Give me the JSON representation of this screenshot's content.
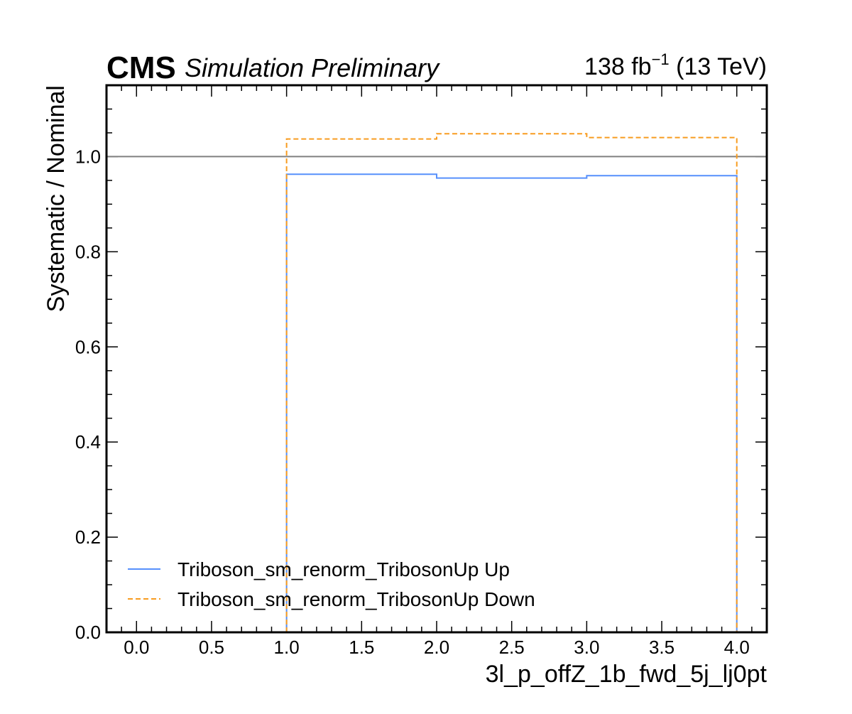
{
  "header": {
    "experiment": "CMS",
    "status": "Simulation Preliminary",
    "lumi_value": "138 fb",
    "lumi_exp": "−1",
    "lumi_energy": " (13 TeV)"
  },
  "chart_data": {
    "type": "line",
    "drawstyle": "steps",
    "xlabel": "3l_p_offZ_1b_fwd_5j_lj0pt",
    "ylabel": "Systematic / Nominal",
    "xlim": [
      -0.2,
      4.2
    ],
    "ylim": [
      0.0,
      1.15
    ],
    "xticks": [
      0.0,
      0.5,
      1.0,
      1.5,
      2.0,
      2.5,
      3.0,
      3.5,
      4.0
    ],
    "xtick_labels": [
      "0.0",
      "0.5",
      "1.0",
      "1.5",
      "2.0",
      "2.5",
      "3.0",
      "3.5",
      "4.0"
    ],
    "yticks": [
      0.0,
      0.2,
      0.4,
      0.6,
      0.8,
      1.0
    ],
    "ytick_labels": [
      "0.0",
      "0.2",
      "0.4",
      "0.6",
      "0.8",
      "1.0"
    ],
    "reference_line": {
      "y": 1.0,
      "color": "#808080"
    },
    "bin_edges": [
      1.0,
      2.0,
      3.0,
      4.0
    ],
    "series": [
      {
        "name": "Triboson_sm_renorm_TribosonUp Up",
        "values": [
          0.963,
          0.955,
          0.96
        ],
        "color": "#5790fc",
        "style": "solid"
      },
      {
        "name": "Triboson_sm_renorm_TribosonUp Down",
        "values": [
          1.037,
          1.048,
          1.04
        ],
        "color": "#f89c20",
        "style": "dashed"
      }
    ],
    "legend_position": "lower-left",
    "grid": false
  }
}
